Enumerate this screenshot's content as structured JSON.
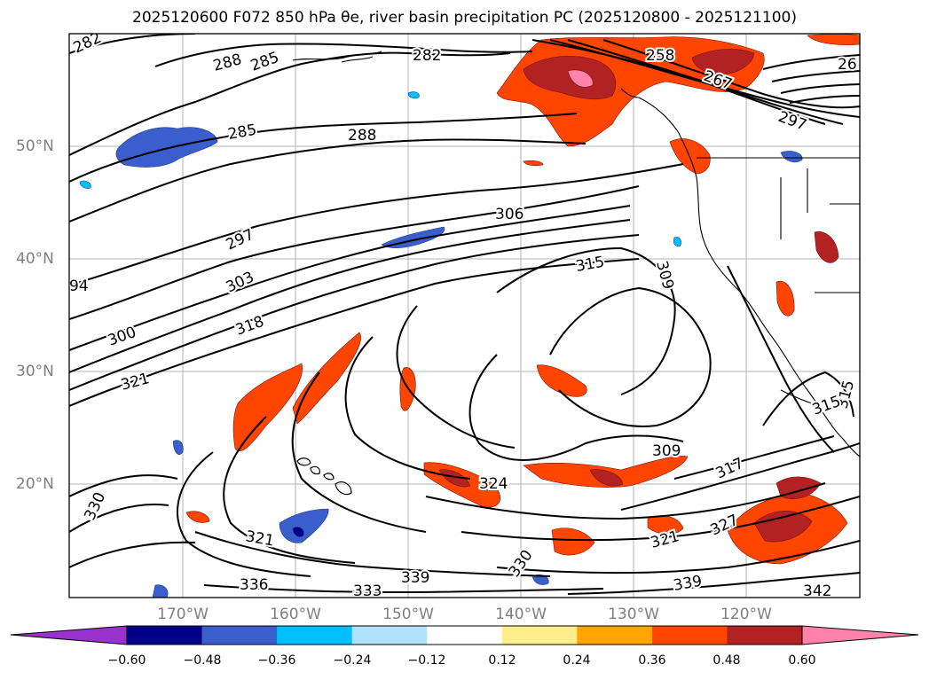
{
  "title": "2025120600 F072 850 hPa θe, river basin precipitation PC (2025120800 - 2025121100)",
  "lat_labels": [
    "50°N",
    "40°N",
    "30°N",
    "20°N"
  ],
  "lon_labels": [
    "170°W",
    "160°W",
    "150°W",
    "140°W",
    "130°W",
    "120°W"
  ],
  "contour_labels": [
    "282",
    "288",
    "285",
    "282",
    "258",
    "267",
    "26",
    "285",
    "288",
    "297",
    "306",
    "297",
    "303",
    "315",
    "309",
    "94",
    "300",
    "318",
    "321",
    "315",
    "309",
    "317",
    "324",
    "330",
    "321",
    "330",
    "336",
    "333",
    "339",
    "327",
    "321",
    "339",
    "342",
    "315"
  ],
  "colorbar": {
    "ticks": [
      "−0.60",
      "−0.48",
      "−0.36",
      "−0.24",
      "−0.12",
      "0.12",
      "0.24",
      "0.36",
      "0.48",
      "0.60"
    ],
    "colors": [
      "#9932cc",
      "#00008b",
      "#3a5fcd",
      "#00bfff",
      "#b0e2ff",
      "#ffffff",
      "#ffec8b",
      "#ffa500",
      "#ff4500",
      "#b22222",
      "#ff82ab"
    ]
  }
}
